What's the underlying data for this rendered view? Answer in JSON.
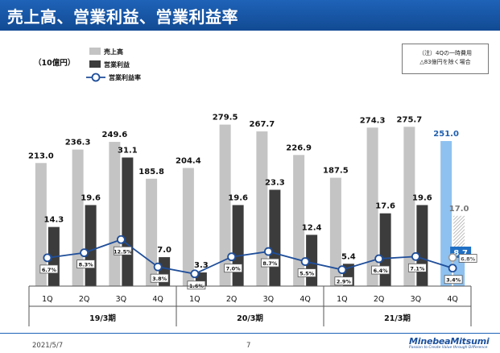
{
  "header": {
    "title": "売上高、営業利益、営業利益率"
  },
  "unit_label": "（10億円）",
  "note": {
    "line1": "（注）4Qの一時費用",
    "line2": "△83億円を除く場合"
  },
  "footer": {
    "date": "2021/5/7",
    "page": "7",
    "logo": "MinebeaMitsumi",
    "tagline": "Passion to Create Value through Difference"
  },
  "colors": {
    "sales": "#c4c4c4",
    "op": "#3c3c3c",
    "forecast": "#8ec1ef",
    "line": "#1f4e9a",
    "hatch": "#9a9a9a",
    "highlight": "#1f6fc4"
  },
  "chart_data": {
    "type": "bar",
    "categories": [
      "1Q",
      "2Q",
      "3Q",
      "4Q",
      "1Q",
      "2Q",
      "3Q",
      "4Q",
      "1Q",
      "2Q",
      "3Q",
      "4Q"
    ],
    "groups": [
      {
        "label": "19/3期",
        "start": 0,
        "end": 3
      },
      {
        "label": "20/3期",
        "start": 4,
        "end": 7
      },
      {
        "label": "21/3期",
        "start": 8,
        "end": 11
      }
    ],
    "series": [
      {
        "name": "売上高",
        "type": "bar",
        "values": [
          213.0,
          236.3,
          249.6,
          185.8,
          204.4,
          279.5,
          267.7,
          226.9,
          187.5,
          274.3,
          275.7,
          251.0
        ],
        "labels": [
          "213.0",
          "236.3",
          "249.6",
          "185.8",
          "204.4",
          "279.5",
          "267.7",
          "226.9",
          "187.5",
          "274.3",
          "275.7",
          "251.0"
        ]
      },
      {
        "name": "営業利益",
        "type": "bar",
        "values": [
          14.3,
          19.6,
          31.1,
          7.0,
          3.3,
          19.6,
          23.3,
          12.4,
          5.4,
          17.6,
          19.6,
          8.7
        ],
        "labels": [
          "14.3",
          "19.6",
          "31.1",
          "7.0",
          "3.3",
          "19.6",
          "23.3",
          "12.4",
          "5.4",
          "17.6",
          "19.6",
          "8.7"
        ]
      },
      {
        "name": "営業利益率",
        "type": "line",
        "values": [
          6.7,
          8.3,
          12.5,
          3.8,
          1.6,
          7.0,
          8.7,
          5.5,
          2.9,
          6.4,
          7.1,
          3.4
        ],
        "labels": [
          "6.7%",
          "8.3%",
          "12.5%",
          "3.8%",
          "1.6%",
          "7.0%",
          "8.7%",
          "5.5%",
          "2.9%",
          "6.4%",
          "7.1%",
          "3.4%"
        ]
      }
    ],
    "adjusted": {
      "category_index": 11,
      "op_value": 17.0,
      "op_label": "17.0",
      "margin_value": 6.8,
      "margin_label": "6.8%"
    },
    "legend": {
      "position": "top-left",
      "items": [
        "売上高",
        "営業利益",
        "営業利益率"
      ]
    }
  }
}
